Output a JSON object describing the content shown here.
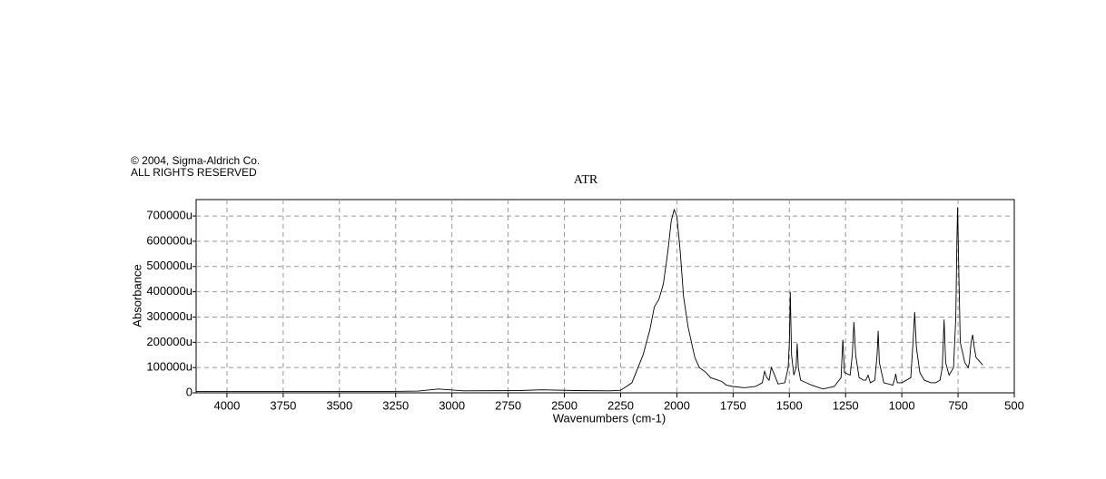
{
  "chart_data": {
    "type": "line",
    "notice": [
      "© 2004, Sigma-Aldrich Co.",
      "ALL RIGHTS RESERVED"
    ],
    "title": "ATR",
    "x_label": "Wavenumbers (cm-1)",
    "y_label": "Absorbance",
    "xlim": [
      4137,
      500
    ],
    "ylim": [
      0,
      765000
    ],
    "xticks": [
      4000,
      3750,
      3500,
      3250,
      3000,
      2750,
      2500,
      2250,
      2000,
      1750,
      1500,
      1250,
      1000,
      750,
      500
    ],
    "yticks": [
      0,
      {
        "value": 100000,
        "label": "100000u"
      },
      {
        "value": 200000,
        "label": "200000u"
      },
      {
        "value": 300000,
        "label": "300000u"
      },
      {
        "value": 400000,
        "label": "400000u"
      },
      {
        "value": 500000,
        "label": "500000u"
      },
      {
        "value": 600000,
        "label": "600000u"
      },
      {
        "value": 700000,
        "label": "700000u"
      }
    ],
    "grid": true,
    "color": "#000000",
    "x": [
      4137,
      3900,
      3600,
      3300,
      3150,
      3060,
      2950,
      2700,
      2600,
      2450,
      2300,
      2250,
      2200,
      2150,
      2120,
      2100,
      2080,
      2060,
      2040,
      2025,
      2012,
      2000,
      1985,
      1970,
      1950,
      1920,
      1900,
      1870,
      1850,
      1800,
      1780,
      1750,
      1700,
      1650,
      1620,
      1610,
      1600,
      1590,
      1580,
      1570,
      1550,
      1520,
      1505,
      1500,
      1496,
      1490,
      1480,
      1470,
      1465,
      1460,
      1450,
      1400,
      1350,
      1300,
      1270,
      1262,
      1255,
      1230,
      1220,
      1213,
      1205,
      1190,
      1170,
      1160,
      1150,
      1140,
      1120,
      1110,
      1105,
      1100,
      1080,
      1040,
      1030,
      1027,
      1020,
      1000,
      960,
      950,
      943,
      935,
      920,
      900,
      870,
      850,
      830,
      820,
      812,
      805,
      790,
      770,
      760,
      755,
      752,
      747,
      740,
      720,
      705,
      700,
      692,
      685,
      678,
      670,
      650,
      640
    ],
    "values": [
      5000,
      5000,
      5000,
      5000,
      7000,
      15000,
      8000,
      9000,
      12000,
      9000,
      8000,
      10000,
      40000,
      150000,
      250000,
      340000,
      370000,
      430000,
      560000,
      680000,
      725000,
      700000,
      560000,
      380000,
      260000,
      140000,
      100000,
      80000,
      60000,
      45000,
      30000,
      25000,
      20000,
      25000,
      40000,
      85000,
      60000,
      50000,
      100000,
      80000,
      35000,
      40000,
      100000,
      200000,
      400000,
      150000,
      70000,
      100000,
      195000,
      100000,
      50000,
      30000,
      15000,
      25000,
      60000,
      210000,
      80000,
      70000,
      150000,
      280000,
      150000,
      60000,
      50000,
      50000,
      70000,
      40000,
      50000,
      150000,
      245000,
      120000,
      40000,
      30000,
      60000,
      75000,
      40000,
      40000,
      60000,
      200000,
      320000,
      180000,
      80000,
      50000,
      40000,
      40000,
      50000,
      100000,
      290000,
      120000,
      70000,
      100000,
      300000,
      600000,
      735000,
      500000,
      200000,
      120000,
      100000,
      120000,
      200000,
      230000,
      180000,
      140000,
      120000,
      110000
    ]
  }
}
